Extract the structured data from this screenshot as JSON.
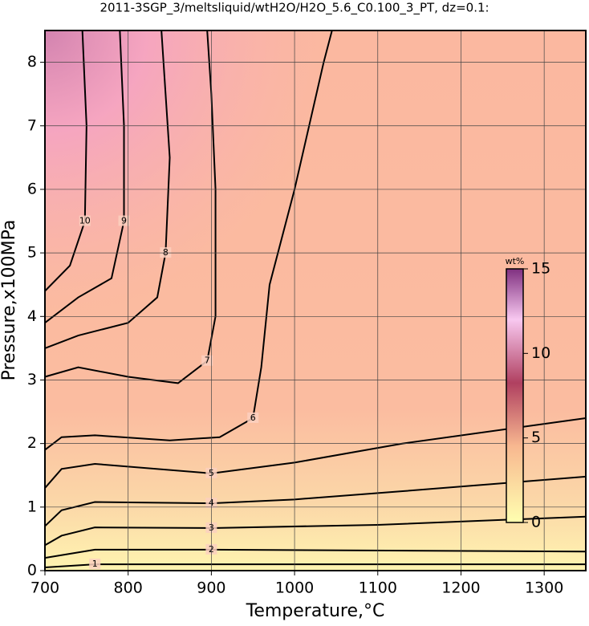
{
  "chart_data": {
    "type": "contour",
    "title": "2011-3SGP_3/meltsliquid/wtH2O/H2O_5.6_C0.100_3_PT, dz=0.1:",
    "x_label": "Temperature,°C",
    "y_label": "Pressure,x100MPa",
    "xlim": [
      700,
      1350
    ],
    "ylim": [
      0,
      8.5
    ],
    "xticks": [
      700,
      800,
      900,
      1000,
      1100,
      1200,
      1300
    ],
    "yticks": [
      0,
      1,
      2,
      3,
      4,
      5,
      6,
      7,
      8
    ],
    "grid": true,
    "colorbar": {
      "label": "wt%",
      "lim": [
        0,
        15
      ],
      "ticks": [
        0,
        5,
        10,
        15
      ]
    },
    "contours": [
      {
        "level": 1,
        "x": [
          700,
          760,
          1350
        ],
        "y": [
          0.05,
          0.1,
          0.1
        ]
      },
      {
        "level": 2,
        "x": [
          700,
          760,
          900,
          1350
        ],
        "y": [
          0.2,
          0.33,
          0.33,
          0.3
        ]
      },
      {
        "level": 3,
        "x": [
          700,
          720,
          760,
          900,
          1100,
          1350
        ],
        "y": [
          0.4,
          0.55,
          0.68,
          0.67,
          0.72,
          0.85
        ]
      },
      {
        "level": 4,
        "x": [
          700,
          720,
          760,
          900,
          1000,
          1130,
          1350
        ],
        "y": [
          0.7,
          0.95,
          1.08,
          1.06,
          1.12,
          1.25,
          1.48
        ]
      },
      {
        "level": 5,
        "x": [
          700,
          720,
          760,
          900,
          1000,
          1130,
          1350
        ],
        "y": [
          1.3,
          1.6,
          1.68,
          1.53,
          1.7,
          2.0,
          2.4
        ]
      },
      {
        "level": 6,
        "x": [
          700,
          720,
          760,
          850,
          910,
          950,
          960,
          970,
          1000,
          1035,
          1045
        ],
        "y": [
          1.9,
          2.1,
          2.13,
          2.05,
          2.1,
          2.4,
          3.2,
          4.5,
          6,
          8.0,
          8.5
        ]
      },
      {
        "level": 7,
        "x": [
          700,
          740,
          800,
          860,
          895,
          905,
          905,
          900,
          895
        ],
        "y": [
          3.05,
          3.2,
          3.05,
          2.95,
          3.3,
          4,
          6,
          7.5,
          8.5
        ]
      },
      {
        "level": 8,
        "x": [
          700,
          740,
          800,
          835,
          845,
          850,
          845,
          840
        ],
        "y": [
          3.5,
          3.7,
          3.9,
          4.3,
          5,
          6.5,
          7.5,
          8.5
        ]
      },
      {
        "level": 9,
        "x": [
          700,
          740,
          780,
          795,
          795,
          790
        ],
        "y": [
          3.9,
          4.3,
          4.6,
          5.5,
          7,
          8.5
        ]
      },
      {
        "level": 10,
        "x": [
          700,
          730,
          748,
          750,
          745
        ],
        "y": [
          4.4,
          4.8,
          5.5,
          7,
          8.5
        ]
      }
    ]
  }
}
